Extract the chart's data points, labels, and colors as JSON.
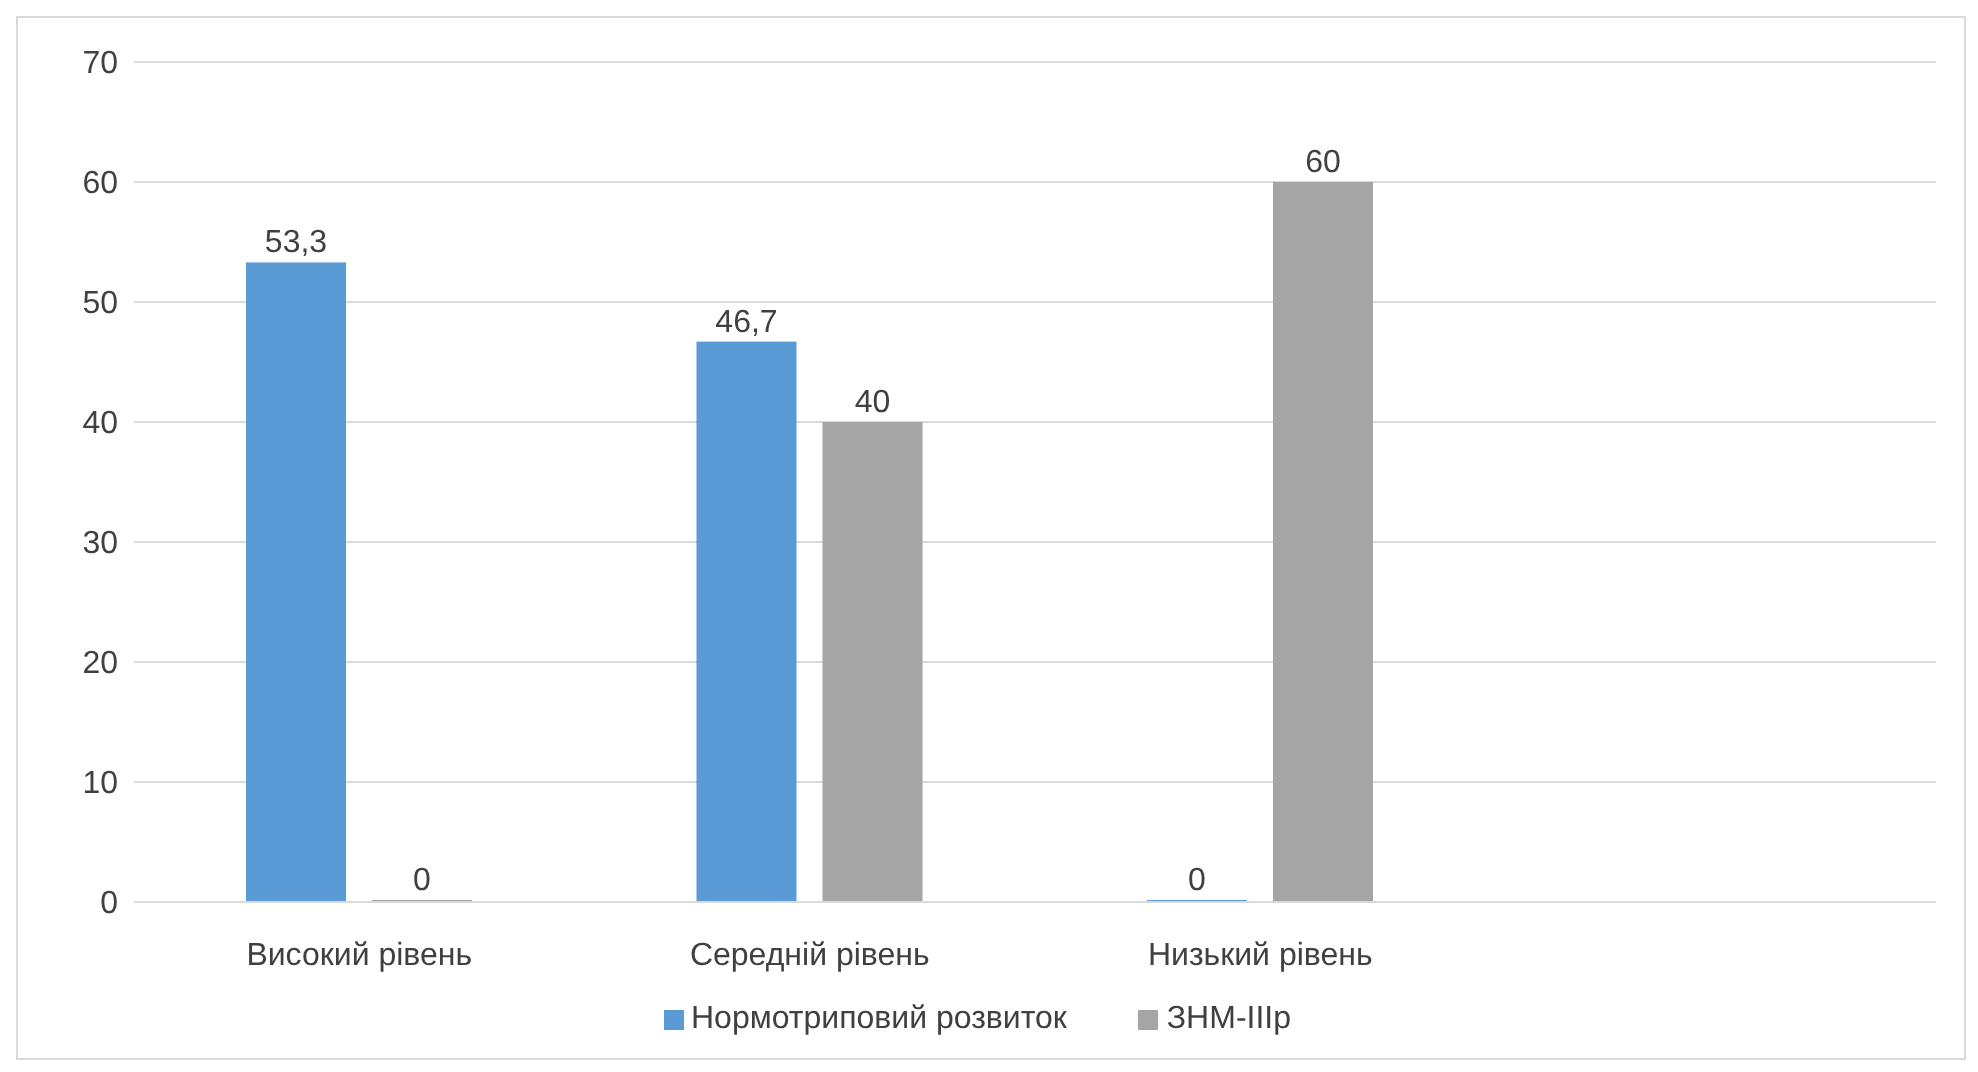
{
  "chart_data": {
    "type": "bar",
    "categories": [
      "Високий рівень",
      "Середній рівень",
      "Низький рівень",
      null
    ],
    "series": [
      {
        "name": "Нормотриповий розвиток",
        "color": "#5b9bd5",
        "values": [
          53.3,
          46.7,
          0,
          null
        ],
        "value_labels": [
          "53,3",
          "46,7",
          "0",
          null
        ]
      },
      {
        "name": "ЗНМ-IIIр",
        "color": "#a5a5a5",
        "values": [
          0,
          40,
          60,
          null
        ],
        "value_labels": [
          "0",
          "40",
          "60",
          null
        ]
      }
    ],
    "ylim": [
      0,
      70
    ],
    "yticks": [
      0,
      10,
      20,
      30,
      40,
      50,
      60,
      70
    ],
    "grid": "y",
    "legend": "bottom"
  }
}
